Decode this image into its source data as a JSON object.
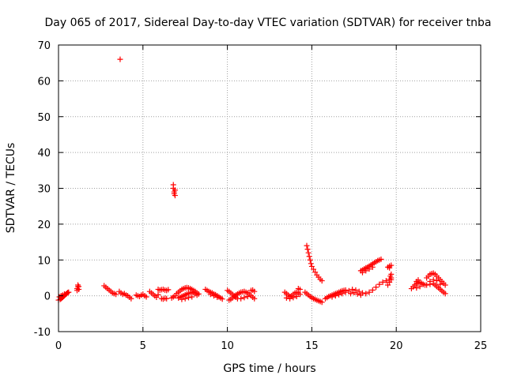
{
  "chart_data": {
    "type": "scatter",
    "title": "Day 065 of 2017, Sidereal Day-to-day VTEC variation (SDTVAR) for receiver tnba",
    "xlabel": "GPS time / hours",
    "ylabel": "SDTVAR / TECUs",
    "xlim": [
      0,
      25
    ],
    "ylim": [
      -10,
      70
    ],
    "xticks": [
      0,
      5,
      10,
      15,
      20,
      25
    ],
    "yticks": [
      -10,
      0,
      10,
      20,
      30,
      40,
      50,
      60,
      70
    ],
    "xtick_labels": [
      "0",
      "5",
      "10",
      "15",
      "20",
      "25"
    ],
    "ytick_labels": [
      "-10",
      "0",
      "10",
      "20",
      "30",
      "40",
      "50",
      "60",
      "70"
    ],
    "grid": true,
    "marker": "+",
    "marker_color": "#ff0000",
    "grid_color": "#a0a0a0",
    "legend": "none",
    "series": [
      {
        "name": "SDTVAR",
        "points": [
          [
            0.0,
            -1.2
          ],
          [
            0.1,
            -1.0
          ],
          [
            0.15,
            -0.8
          ],
          [
            0.2,
            -0.6
          ],
          [
            0.25,
            -0.4
          ],
          [
            0.3,
            -0.2
          ],
          [
            0.35,
            0.0
          ],
          [
            0.4,
            0.3
          ],
          [
            0.45,
            0.5
          ],
          [
            0.5,
            0.7
          ],
          [
            0.55,
            0.9
          ],
          [
            0.6,
            1.0
          ],
          [
            0.05,
            -0.3
          ],
          [
            0.15,
            0.0
          ],
          [
            0.25,
            0.2
          ],
          [
            0.35,
            0.5
          ],
          [
            1.1,
            1.5
          ],
          [
            1.1,
            2.0
          ],
          [
            1.15,
            2.5
          ],
          [
            1.15,
            3.0
          ],
          [
            1.2,
            1.8
          ],
          [
            1.2,
            2.6
          ],
          [
            2.7,
            2.8
          ],
          [
            2.8,
            2.4
          ],
          [
            2.9,
            2.0
          ],
          [
            3.0,
            1.6
          ],
          [
            3.1,
            1.2
          ],
          [
            3.2,
            0.8
          ],
          [
            3.3,
            0.6
          ],
          [
            3.4,
            0.4
          ],
          [
            3.6,
            1.2
          ],
          [
            3.7,
            0.8
          ],
          [
            3.8,
            0.4
          ],
          [
            3.9,
            0.6
          ],
          [
            4.0,
            0.2
          ],
          [
            4.1,
            0.0
          ],
          [
            4.2,
            -0.4
          ],
          [
            4.3,
            -0.8
          ],
          [
            3.65,
            66.0
          ],
          [
            4.6,
            0.2
          ],
          [
            4.7,
            0.0
          ],
          [
            4.8,
            -0.2
          ],
          [
            4.9,
            0.2
          ],
          [
            5.0,
            0.4
          ],
          [
            5.1,
            0.0
          ],
          [
            5.2,
            -0.3
          ],
          [
            5.4,
            1.2
          ],
          [
            5.5,
            0.8
          ],
          [
            5.6,
            0.4
          ],
          [
            5.7,
            0.0
          ],
          [
            5.8,
            -0.4
          ],
          [
            5.9,
            0.3
          ],
          [
            5.9,
            1.8
          ],
          [
            6.0,
            1.6
          ],
          [
            6.1,
            1.7
          ],
          [
            6.2,
            1.8
          ],
          [
            6.3,
            1.6
          ],
          [
            6.4,
            1.5
          ],
          [
            6.5,
            1.7
          ],
          [
            6.1,
            -0.8
          ],
          [
            6.2,
            -0.9
          ],
          [
            6.3,
            -0.7
          ],
          [
            6.4,
            -0.8
          ],
          [
            6.8,
            31.0
          ],
          [
            6.8,
            30.0
          ],
          [
            6.85,
            29.0
          ],
          [
            6.85,
            28.5
          ],
          [
            6.9,
            28.0
          ],
          [
            6.9,
            29.5
          ],
          [
            6.7,
            -0.6
          ],
          [
            6.8,
            -0.3
          ],
          [
            6.9,
            0.0
          ],
          [
            7.0,
            0.6
          ],
          [
            7.1,
            1.0
          ],
          [
            7.2,
            1.4
          ],
          [
            7.3,
            1.8
          ],
          [
            7.4,
            2.0
          ],
          [
            7.5,
            2.2
          ],
          [
            7.6,
            2.3
          ],
          [
            7.7,
            2.2
          ],
          [
            7.8,
            2.0
          ],
          [
            7.9,
            1.8
          ],
          [
            8.0,
            1.5
          ],
          [
            8.1,
            1.2
          ],
          [
            8.2,
            0.8
          ],
          [
            8.3,
            0.5
          ],
          [
            7.1,
            -0.6
          ],
          [
            7.2,
            -0.4
          ],
          [
            7.3,
            -0.2
          ],
          [
            7.4,
            0.0
          ],
          [
            7.5,
            0.3
          ],
          [
            7.6,
            0.5
          ],
          [
            7.7,
            0.7
          ],
          [
            7.8,
            0.8
          ],
          [
            7.9,
            1.0
          ],
          [
            8.0,
            0.9
          ],
          [
            8.1,
            0.6
          ],
          [
            8.2,
            0.2
          ],
          [
            7.3,
            -1.0
          ],
          [
            7.5,
            -0.8
          ],
          [
            7.7,
            -0.5
          ],
          [
            7.9,
            -0.3
          ],
          [
            8.7,
            1.8
          ],
          [
            8.8,
            1.5
          ],
          [
            8.9,
            1.2
          ],
          [
            9.0,
            1.0
          ],
          [
            9.1,
            0.8
          ],
          [
            9.2,
            0.5
          ],
          [
            9.3,
            0.3
          ],
          [
            9.4,
            0.0
          ],
          [
            9.5,
            -0.3
          ],
          [
            9.6,
            -0.6
          ],
          [
            9.7,
            -0.9
          ],
          [
            9.0,
            0.4
          ],
          [
            9.2,
            0.0
          ],
          [
            9.4,
            -0.4
          ],
          [
            10.0,
            1.5
          ],
          [
            10.1,
            1.2
          ],
          [
            10.2,
            0.8
          ],
          [
            10.3,
            0.4
          ],
          [
            10.4,
            0.0
          ],
          [
            10.5,
            -0.4
          ],
          [
            10.6,
            -0.8
          ],
          [
            10.1,
            -1.2
          ],
          [
            10.2,
            -1.0
          ],
          [
            10.3,
            -0.6
          ],
          [
            10.4,
            -0.2
          ],
          [
            10.5,
            0.2
          ],
          [
            10.6,
            0.5
          ],
          [
            10.7,
            0.8
          ],
          [
            10.8,
            1.0
          ],
          [
            10.9,
            1.1
          ],
          [
            11.0,
            1.2
          ],
          [
            11.1,
            1.0
          ],
          [
            11.2,
            0.8
          ],
          [
            11.3,
            0.4
          ],
          [
            11.4,
            0.0
          ],
          [
            11.5,
            -0.4
          ],
          [
            11.6,
            -0.8
          ],
          [
            10.8,
            -0.8
          ],
          [
            11.0,
            -0.5
          ],
          [
            11.2,
            -0.2
          ],
          [
            11.4,
            1.5
          ],
          [
            11.5,
            1.6
          ],
          [
            11.6,
            1.2
          ],
          [
            13.4,
            1.0
          ],
          [
            13.5,
            0.6
          ],
          [
            13.6,
            0.2
          ],
          [
            13.7,
            -0.2
          ],
          [
            13.8,
            0.0
          ],
          [
            13.9,
            0.4
          ],
          [
            14.0,
            0.8
          ],
          [
            14.1,
            1.0
          ],
          [
            14.2,
            0.8
          ],
          [
            14.3,
            0.4
          ],
          [
            13.5,
            -0.6
          ],
          [
            13.7,
            -0.8
          ],
          [
            13.9,
            -0.5
          ],
          [
            14.1,
            -0.2
          ],
          [
            14.2,
            2.0
          ],
          [
            14.3,
            1.8
          ],
          [
            14.7,
            14.0
          ],
          [
            14.75,
            13.0
          ],
          [
            14.8,
            12.0
          ],
          [
            14.85,
            11.0
          ],
          [
            14.9,
            10.0
          ],
          [
            14.95,
            9.0
          ],
          [
            15.0,
            8.2
          ],
          [
            15.1,
            7.4
          ],
          [
            15.2,
            6.6
          ],
          [
            15.3,
            5.8
          ],
          [
            15.4,
            5.2
          ],
          [
            15.5,
            4.6
          ],
          [
            15.6,
            4.2
          ],
          [
            14.6,
            1.0
          ],
          [
            14.7,
            0.6
          ],
          [
            14.8,
            0.2
          ],
          [
            14.9,
            -0.2
          ],
          [
            15.0,
            -0.5
          ],
          [
            15.1,
            -0.8
          ],
          [
            15.2,
            -1.0
          ],
          [
            15.3,
            -1.2
          ],
          [
            15.4,
            -1.4
          ],
          [
            15.5,
            -1.6
          ],
          [
            15.6,
            -1.8
          ],
          [
            15.8,
            -0.8
          ],
          [
            15.9,
            -0.5
          ],
          [
            16.0,
            -0.2
          ],
          [
            16.1,
            0.0
          ],
          [
            16.2,
            0.2
          ],
          [
            16.3,
            0.4
          ],
          [
            16.4,
            0.6
          ],
          [
            16.5,
            0.8
          ],
          [
            16.6,
            1.0
          ],
          [
            16.7,
            1.2
          ],
          [
            16.8,
            1.4
          ],
          [
            16.9,
            1.5
          ],
          [
            17.0,
            1.6
          ],
          [
            16.2,
            -0.3
          ],
          [
            16.4,
            0.0
          ],
          [
            16.6,
            0.3
          ],
          [
            16.8,
            0.6
          ],
          [
            17.0,
            1.0
          ],
          [
            17.2,
            1.4
          ],
          [
            17.4,
            1.8
          ],
          [
            17.6,
            1.6
          ],
          [
            17.8,
            1.2
          ],
          [
            18.0,
            0.8
          ],
          [
            18.2,
            0.6
          ],
          [
            18.4,
            1.0
          ],
          [
            18.6,
            1.6
          ],
          [
            18.8,
            2.4
          ],
          [
            19.0,
            3.2
          ],
          [
            19.2,
            3.8
          ],
          [
            19.4,
            4.2
          ],
          [
            19.6,
            4.6
          ],
          [
            19.7,
            5.0
          ],
          [
            17.3,
            0.6
          ],
          [
            17.5,
            0.9
          ],
          [
            17.7,
            0.5
          ],
          [
            17.9,
            0.2
          ],
          [
            17.9,
            7.0
          ],
          [
            18.0,
            7.2
          ],
          [
            18.1,
            7.5
          ],
          [
            18.2,
            7.8
          ],
          [
            18.3,
            8.0
          ],
          [
            18.4,
            8.3
          ],
          [
            18.5,
            8.6
          ],
          [
            18.6,
            8.9
          ],
          [
            18.7,
            9.2
          ],
          [
            18.8,
            9.5
          ],
          [
            18.9,
            9.8
          ],
          [
            19.0,
            10.0
          ],
          [
            19.1,
            10.2
          ],
          [
            18.0,
            6.5
          ],
          [
            18.2,
            7.0
          ],
          [
            18.4,
            7.5
          ],
          [
            18.6,
            8.0
          ],
          [
            19.5,
            8.0
          ],
          [
            19.6,
            8.3
          ],
          [
            19.7,
            8.5
          ],
          [
            19.6,
            7.8
          ],
          [
            19.5,
            3.0
          ],
          [
            19.6,
            3.8
          ],
          [
            19.7,
            4.5
          ],
          [
            19.65,
            5.5
          ],
          [
            19.7,
            6.0
          ],
          [
            20.9,
            2.0
          ],
          [
            21.0,
            2.5
          ],
          [
            21.1,
            3.0
          ],
          [
            21.2,
            3.4
          ],
          [
            21.3,
            3.6
          ],
          [
            21.4,
            3.8
          ],
          [
            21.5,
            3.5
          ],
          [
            21.6,
            3.2
          ],
          [
            21.7,
            3.0
          ],
          [
            21.2,
            4.0
          ],
          [
            21.3,
            4.4
          ],
          [
            21.2,
            2.2
          ],
          [
            21.4,
            2.6
          ],
          [
            21.8,
            5.0
          ],
          [
            21.9,
            5.5
          ],
          [
            22.0,
            6.0
          ],
          [
            22.1,
            6.2
          ],
          [
            22.2,
            6.3
          ],
          [
            22.3,
            6.0
          ],
          [
            22.4,
            5.5
          ],
          [
            22.5,
            5.0
          ],
          [
            22.6,
            4.5
          ],
          [
            22.7,
            4.0
          ],
          [
            22.8,
            3.5
          ],
          [
            22.9,
            3.0
          ],
          [
            21.8,
            3.0
          ],
          [
            22.0,
            3.2
          ],
          [
            22.2,
            3.4
          ],
          [
            22.3,
            3.0
          ],
          [
            22.4,
            2.6
          ],
          [
            22.5,
            2.2
          ],
          [
            22.6,
            1.8
          ],
          [
            22.7,
            1.4
          ],
          [
            22.8,
            1.0
          ],
          [
            22.9,
            0.6
          ],
          [
            22.0,
            4.0
          ],
          [
            22.2,
            4.5
          ],
          [
            22.4,
            4.2
          ],
          [
            22.6,
            3.2
          ]
        ]
      }
    ]
  }
}
